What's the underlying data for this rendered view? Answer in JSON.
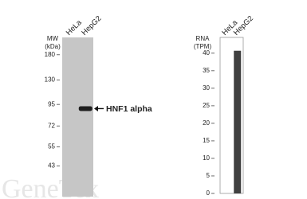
{
  "chart_data": [
    {
      "type": "blot",
      "y_label_lines": [
        "MW",
        "(kDa)"
      ],
      "categories": [
        "HeLa",
        "HepG2"
      ],
      "values": [
        null,
        90
      ],
      "annotation": "HNF1 alpha",
      "ylim": [
        29,
        225
      ],
      "yticks": [
        180,
        130,
        95,
        72,
        55,
        43
      ],
      "log_scale": true,
      "color": "#c6c6c6",
      "band_color": "#1e1e1e"
    },
    {
      "type": "bar",
      "y_label_lines": [
        "RNA",
        "(TPM)"
      ],
      "categories": [
        "HeLa",
        "HepG2"
      ],
      "values": [
        0,
        40.7
      ],
      "color": "#404040",
      "ylim": [
        0,
        44.5
      ],
      "yticks": [
        0,
        5,
        10,
        15,
        20,
        25,
        30,
        35,
        40
      ]
    }
  ],
  "watermark": "GeneTex"
}
